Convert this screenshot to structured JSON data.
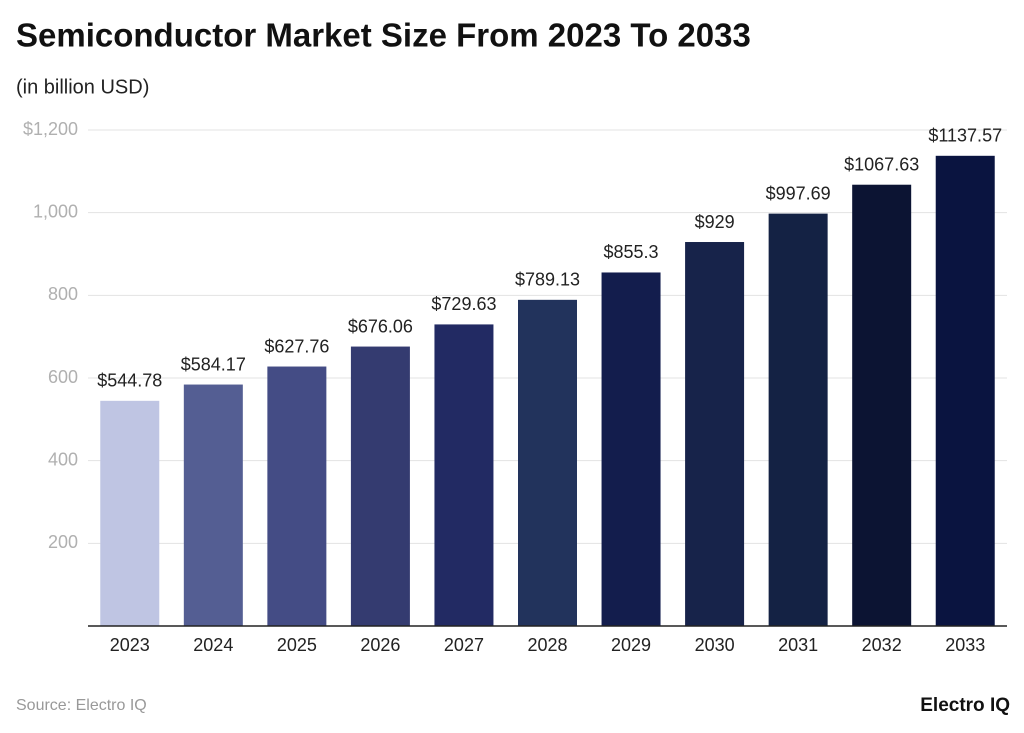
{
  "chart_data": {
    "type": "bar",
    "title": "Semiconductor Market Size From 2023 To 2033",
    "subtitle": "(in billion USD)",
    "categories": [
      "2023",
      "2024",
      "2025",
      "2026",
      "2027",
      "2028",
      "2029",
      "2030",
      "2031",
      "2032",
      "2033"
    ],
    "values": [
      544.78,
      584.17,
      627.76,
      676.06,
      729.63,
      789.13,
      855.3,
      929,
      997.69,
      1067.63,
      1137.57
    ],
    "value_labels": [
      "$544.78",
      "$584.17",
      "$627.76",
      "$676.06",
      "$729.63",
      "$789.13",
      "$855.3",
      "$929",
      "$997.69",
      "$1067.63",
      "$1137.57"
    ],
    "colors": [
      "#bfc5e3",
      "#545e93",
      "#444c85",
      "#343b70",
      "#222a63",
      "#22335c",
      "#131d4d",
      "#17234a",
      "#142244",
      "#0c1433",
      "#0a1440"
    ],
    "ylim": [
      0,
      1200
    ],
    "yticks": [
      200,
      400,
      600,
      800,
      {
        "value": 1000,
        "label": "1,000"
      },
      {
        "value": 1200,
        "label": "$1,200"
      }
    ],
    "grid": true,
    "source": "Source: Electro IQ",
    "logo": "Electro IQ"
  }
}
